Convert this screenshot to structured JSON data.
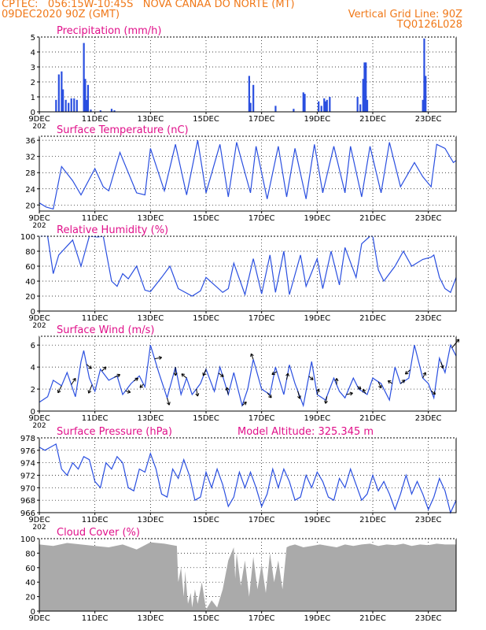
{
  "header": {
    "line1": "CPTEC:   056:15W-10:45S   NOVA CANAA DO NORTE (MT)",
    "line2_left": "09DEC2020 90Z (GMT)",
    "line2_right": "Vertical Grid Line: 90Z",
    "line3_right": "TQ0126L028",
    "color": "#f07818"
  },
  "colors": {
    "title": "#e0118a",
    "line": "#2a4fe0",
    "bar": "#2a4fe0",
    "cloud": "#aaaaaa",
    "arrow": "#000000"
  },
  "x_axis": {
    "tick_labels": [
      "9DEC",
      "11DEC",
      "13DEC",
      "15DEC",
      "17DEC",
      "19DEC",
      "21DEC",
      "23DEC"
    ],
    "tick_days": [
      0,
      2,
      4,
      6,
      8,
      10,
      12,
      14
    ],
    "extra_label": "202",
    "day_span": 15
  },
  "chart_data": [
    {
      "id": "precipitation",
      "type": "bar",
      "title": "Precipitation (mm/h)",
      "ylim": [
        0,
        5
      ],
      "yticks": [
        0,
        1,
        2,
        3,
        4,
        5
      ],
      "grid": true,
      "x_days": [
        0.6,
        0.7,
        0.8,
        0.85,
        0.95,
        1.05,
        1.15,
        1.25,
        1.35,
        1.6,
        1.65,
        1.7,
        1.75,
        1.85,
        2.2,
        2.6,
        2.7,
        7.55,
        7.6,
        7.7,
        8.5,
        9.15,
        9.5,
        9.55,
        10.05,
        10.15,
        10.25,
        10.3,
        10.35,
        10.45,
        11.45,
        11.55,
        11.65,
        11.7,
        11.75,
        11.8,
        13.8,
        13.85,
        13.9
      ],
      "values": [
        0.8,
        2.5,
        2.7,
        1.5,
        0.8,
        0.6,
        0.9,
        0.9,
        0.8,
        4.6,
        2.2,
        0.8,
        1.8,
        0.15,
        0.1,
        0.2,
        0.1,
        2.4,
        0.6,
        1.8,
        0.4,
        0.2,
        1.3,
        1.2,
        0.7,
        0.4,
        0.9,
        0.7,
        0.8,
        1.0,
        1.0,
        0.5,
        2.2,
        3.3,
        3.3,
        0.8,
        0.8,
        4.9,
        2.4
      ]
    },
    {
      "id": "temperature",
      "type": "line",
      "title": "Surface Temperature (nC)",
      "ylim": [
        18.5,
        37
      ],
      "yticks": [
        20,
        24,
        28,
        32,
        36
      ],
      "grid": true,
      "x_days": [
        0.0,
        0.25,
        0.5,
        0.8,
        1.2,
        1.5,
        2.0,
        2.3,
        2.5,
        2.9,
        3.5,
        3.8,
        4.0,
        4.5,
        4.9,
        5.3,
        5.7,
        6.0,
        6.5,
        6.8,
        7.1,
        7.6,
        7.8,
        8.2,
        8.6,
        8.9,
        9.2,
        9.6,
        9.9,
        10.2,
        10.6,
        11.0,
        11.2,
        11.6,
        11.9,
        12.3,
        12.6,
        13.0,
        13.5,
        13.8,
        14.1,
        14.3,
        14.6,
        14.9,
        15.0
      ],
      "values": [
        20.5,
        19.5,
        19.0,
        29.5,
        26.0,
        22.5,
        29.0,
        24.5,
        23.5,
        33.0,
        23.0,
        22.5,
        34.0,
        23.5,
        35.0,
        22.5,
        36.0,
        23.0,
        35.0,
        22.0,
        35.5,
        23.0,
        34.5,
        21.5,
        34.5,
        22.0,
        34.0,
        21.5,
        35.0,
        23.0,
        34.5,
        23.0,
        34.5,
        22.0,
        34.5,
        23.0,
        35.5,
        24.5,
        30.5,
        27.0,
        24.5,
        35.0,
        34.0,
        30.5,
        31.0
      ]
    },
    {
      "id": "humidity",
      "type": "line",
      "title": "Relative Humidity (%)",
      "ylim": [
        0,
        100
      ],
      "yticks": [
        0,
        20,
        40,
        60,
        80,
        100
      ],
      "grid": true,
      "x_days": [
        0.0,
        0.3,
        0.5,
        0.7,
        1.2,
        1.5,
        1.8,
        2.1,
        2.3,
        2.6,
        2.8,
        3.0,
        3.2,
        3.5,
        3.8,
        4.0,
        4.4,
        4.7,
        5.0,
        5.5,
        5.8,
        6.0,
        6.6,
        6.8,
        7.0,
        7.4,
        7.7,
        8.0,
        8.3,
        8.5,
        8.8,
        9.0,
        9.4,
        9.6,
        10.0,
        10.2,
        10.5,
        10.8,
        11.0,
        11.4,
        11.6,
        11.9,
        12.0,
        12.2,
        12.4,
        12.8,
        13.1,
        13.4,
        13.8,
        14.1,
        14.2,
        14.4,
        14.6,
        14.8,
        15.0
      ],
      "values": [
        100.0,
        100.0,
        50.0,
        75.0,
        95.0,
        60.0,
        100.0,
        99.0,
        100.0,
        40.0,
        33.0,
        50.0,
        43.0,
        60.0,
        28.0,
        26.0,
        45.0,
        60.0,
        30.0,
        20.0,
        27.0,
        45.0,
        25.0,
        30.0,
        64.0,
        22.0,
        70.0,
        23.0,
        75.0,
        25.0,
        80.0,
        22.0,
        75.0,
        33.0,
        70.0,
        30.0,
        80.0,
        35.0,
        85.0,
        45.0,
        90.0,
        100.0,
        100.0,
        55.0,
        40.0,
        60.0,
        80.0,
        60.0,
        69.0,
        72.0,
        75.0,
        45.0,
        30.0,
        25.0,
        45.0
      ]
    },
    {
      "id": "wind",
      "type": "line",
      "title": "Surface Wind (m/s)",
      "ylim": [
        0,
        6.8
      ],
      "yticks": [
        0,
        2,
        4,
        6
      ],
      "grid": true,
      "x_days": [
        0.0,
        0.3,
        0.5,
        0.8,
        1.0,
        1.3,
        1.5,
        1.6,
        1.8,
        2.0,
        2.2,
        2.5,
        2.8,
        3.0,
        3.3,
        3.6,
        3.8,
        4.0,
        4.3,
        4.6,
        4.9,
        5.1,
        5.3,
        5.5,
        5.8,
        6.0,
        6.3,
        6.5,
        6.8,
        7.0,
        7.3,
        7.5,
        7.7,
        8.0,
        8.3,
        8.5,
        8.8,
        9.0,
        9.2,
        9.5,
        9.8,
        10.0,
        10.3,
        10.6,
        10.8,
        11.0,
        11.3,
        11.5,
        11.8,
        12.0,
        12.3,
        12.6,
        12.8,
        13.0,
        13.3,
        13.5,
        13.8,
        14.0,
        14.2,
        14.4,
        14.6,
        14.8,
        15.0
      ],
      "values": [
        0.8,
        1.3,
        2.8,
        2.3,
        3.5,
        1.3,
        4.5,
        5.5,
        3.0,
        1.8,
        3.8,
        2.8,
        3.2,
        1.5,
        2.5,
        3.2,
        2.2,
        6.0,
        3.5,
        1.2,
        4.0,
        1.5,
        3.0,
        1.5,
        2.5,
        3.8,
        1.8,
        4.0,
        1.5,
        3.5,
        0.5,
        2.0,
        4.7,
        2.0,
        1.5,
        4.0,
        1.5,
        4.2,
        2.5,
        0.5,
        4.5,
        1.5,
        1.0,
        3.0,
        1.8,
        1.2,
        3.0,
        2.0,
        1.5,
        3.0,
        2.5,
        1.0,
        4.0,
        2.5,
        3.0,
        6.0,
        3.0,
        2.5,
        1.2,
        4.8,
        3.5,
        6.0,
        5.0
      ],
      "vectors": [
        {
          "day": 0.8,
          "u": -0.5,
          "v": -1.0
        },
        {
          "day": 1.15,
          "u": 0.6,
          "v": 0.9
        },
        {
          "day": 1.7,
          "u": 0.7,
          "v": -0.6
        },
        {
          "day": 1.9,
          "u": -0.5,
          "v": -1.2
        },
        {
          "day": 2.25,
          "u": 0.6,
          "v": 0.6
        },
        {
          "day": 2.7,
          "u": 0.8,
          "v": 0.4
        },
        {
          "day": 3.1,
          "u": 0.7,
          "v": -0.2
        },
        {
          "day": 3.4,
          "u": 0.6,
          "v": 0.4
        },
        {
          "day": 3.75,
          "u": -0.5,
          "v": -0.5
        },
        {
          "day": 4.15,
          "u": 1.0,
          "v": 0.2
        },
        {
          "day": 4.6,
          "u": 0.3,
          "v": -1.0
        },
        {
          "day": 4.9,
          "u": 0.0,
          "v": -1.2
        },
        {
          "day": 5.3,
          "u": -0.7,
          "v": 0.6
        },
        {
          "day": 5.65,
          "u": 0.2,
          "v": -1.0
        },
        {
          "day": 6.0,
          "u": -0.4,
          "v": -0.9
        },
        {
          "day": 6.45,
          "u": 0.7,
          "v": -0.5
        },
        {
          "day": 6.8,
          "u": -0.2,
          "v": 1.0
        },
        {
          "day": 7.3,
          "u": 0.6,
          "v": 0.5
        },
        {
          "day": 7.7,
          "u": -0.3,
          "v": 0.8
        },
        {
          "day": 8.2,
          "u": 0.6,
          "v": -0.7
        },
        {
          "day": 8.55,
          "u": -0.7,
          "v": -0.4
        },
        {
          "day": 8.9,
          "u": 0.2,
          "v": 0.9
        },
        {
          "day": 9.3,
          "u": 0.3,
          "v": -1.1
        },
        {
          "day": 9.7,
          "u": 0.6,
          "v": -0.5
        },
        {
          "day": 10.0,
          "u": 0.2,
          "v": 0.8
        },
        {
          "day": 10.35,
          "u": -0.2,
          "v": -1.0
        },
        {
          "day": 10.7,
          "u": 0.0,
          "v": 0.9
        },
        {
          "day": 11.05,
          "u": 0.9,
          "v": 0.2
        },
        {
          "day": 11.45,
          "u": 0.5,
          "v": -0.4
        },
        {
          "day": 11.75,
          "u": -0.4,
          "v": 0.6
        },
        {
          "day": 12.2,
          "u": 0.4,
          "v": -0.9
        },
        {
          "day": 12.7,
          "u": -0.6,
          "v": 0.4
        },
        {
          "day": 13.0,
          "u": 0.6,
          "v": 0.5
        },
        {
          "day": 13.35,
          "u": -0.7,
          "v": -0.6
        },
        {
          "day": 13.8,
          "u": 0.4,
          "v": 0.8
        },
        {
          "day": 14.1,
          "u": 0.6,
          "v": -0.5
        },
        {
          "day": 14.45,
          "u": 0.3,
          "v": -0.9
        },
        {
          "day": 14.85,
          "u": 1.0,
          "v": 1.2
        }
      ]
    },
    {
      "id": "pressure",
      "type": "line",
      "title": "Surface Pressure (hPa)",
      "subtitle": "Model Altitude: 325.345  m",
      "ylim": [
        966,
        978
      ],
      "yticks": [
        966,
        968,
        970,
        972,
        974,
        976,
        978
      ],
      "grid": true,
      "x_days": [
        0.0,
        0.2,
        0.4,
        0.6,
        0.8,
        1.0,
        1.2,
        1.4,
        1.6,
        1.8,
        2.0,
        2.2,
        2.4,
        2.6,
        2.8,
        3.0,
        3.2,
        3.4,
        3.6,
        3.8,
        4.0,
        4.2,
        4.4,
        4.6,
        4.8,
        5.0,
        5.2,
        5.4,
        5.6,
        5.8,
        6.0,
        6.2,
        6.4,
        6.6,
        6.8,
        7.0,
        7.2,
        7.4,
        7.6,
        7.8,
        8.0,
        8.2,
        8.4,
        8.6,
        8.8,
        9.0,
        9.2,
        9.4,
        9.6,
        9.8,
        10.0,
        10.2,
        10.4,
        10.6,
        10.8,
        11.0,
        11.2,
        11.4,
        11.6,
        11.8,
        12.0,
        12.2,
        12.4,
        12.6,
        12.8,
        13.0,
        13.2,
        13.4,
        13.6,
        13.8,
        14.0,
        14.2,
        14.4,
        14.6,
        14.8,
        15.0
      ],
      "values": [
        976.5,
        976.0,
        976.5,
        977.0,
        973.0,
        972.0,
        974.0,
        973.0,
        975.0,
        974.5,
        971.0,
        970.0,
        974.0,
        973.0,
        975.0,
        974.0,
        970.0,
        969.5,
        973.0,
        972.5,
        975.5,
        973.0,
        969.0,
        968.5,
        973.0,
        971.5,
        974.5,
        972.0,
        968.0,
        968.5,
        972.5,
        970.0,
        973.0,
        970.5,
        967.0,
        968.5,
        972.5,
        970.0,
        972.5,
        970.0,
        967.0,
        969.0,
        973.0,
        970.0,
        973.0,
        971.0,
        968.0,
        968.5,
        972.0,
        970.0,
        972.5,
        971.0,
        968.5,
        968.0,
        971.5,
        970.0,
        973.0,
        970.5,
        968.0,
        969.0,
        972.0,
        969.5,
        971.0,
        969.0,
        966.5,
        969.0,
        972.0,
        969.0,
        971.0,
        969.0,
        966.5,
        968.5,
        971.5,
        969.5,
        966.0,
        968.0
      ]
    },
    {
      "id": "cloud",
      "type": "area",
      "title": "Cloud Cover (%)",
      "ylim": [
        0,
        100
      ],
      "yticks": [
        0,
        20,
        40,
        60,
        80,
        100
      ],
      "grid": true,
      "x_days": [
        0.0,
        0.5,
        1.0,
        1.5,
        2.0,
        2.5,
        3.0,
        3.5,
        4.0,
        4.5,
        4.95,
        5.0,
        5.1,
        5.2,
        5.25,
        5.35,
        5.45,
        5.5,
        5.6,
        5.7,
        5.85,
        6.0,
        6.2,
        6.4,
        6.6,
        6.8,
        7.0,
        7.05,
        7.1,
        7.25,
        7.4,
        7.55,
        7.7,
        7.85,
        8.0,
        8.15,
        8.3,
        8.45,
        8.6,
        8.75,
        8.9,
        9.0,
        9.2,
        9.5,
        9.8,
        10.1,
        10.4,
        10.7,
        11.0,
        11.3,
        11.6,
        11.9,
        12.2,
        12.5,
        12.8,
        13.1,
        13.4,
        13.7,
        14.0,
        14.3,
        14.6,
        15.0
      ],
      "values": [
        92,
        90,
        94,
        92,
        90,
        88,
        92,
        85,
        95,
        93,
        90,
        40,
        60,
        20,
        55,
        10,
        25,
        5,
        30,
        10,
        40,
        2,
        15,
        5,
        30,
        70,
        88,
        45,
        80,
        35,
        70,
        20,
        75,
        30,
        65,
        25,
        80,
        40,
        70,
        30,
        88,
        90,
        92,
        88,
        90,
        92,
        90,
        88,
        92,
        90,
        92,
        93,
        90,
        92,
        91,
        93,
        90,
        92,
        91,
        93,
        92,
        92
      ]
    }
  ]
}
